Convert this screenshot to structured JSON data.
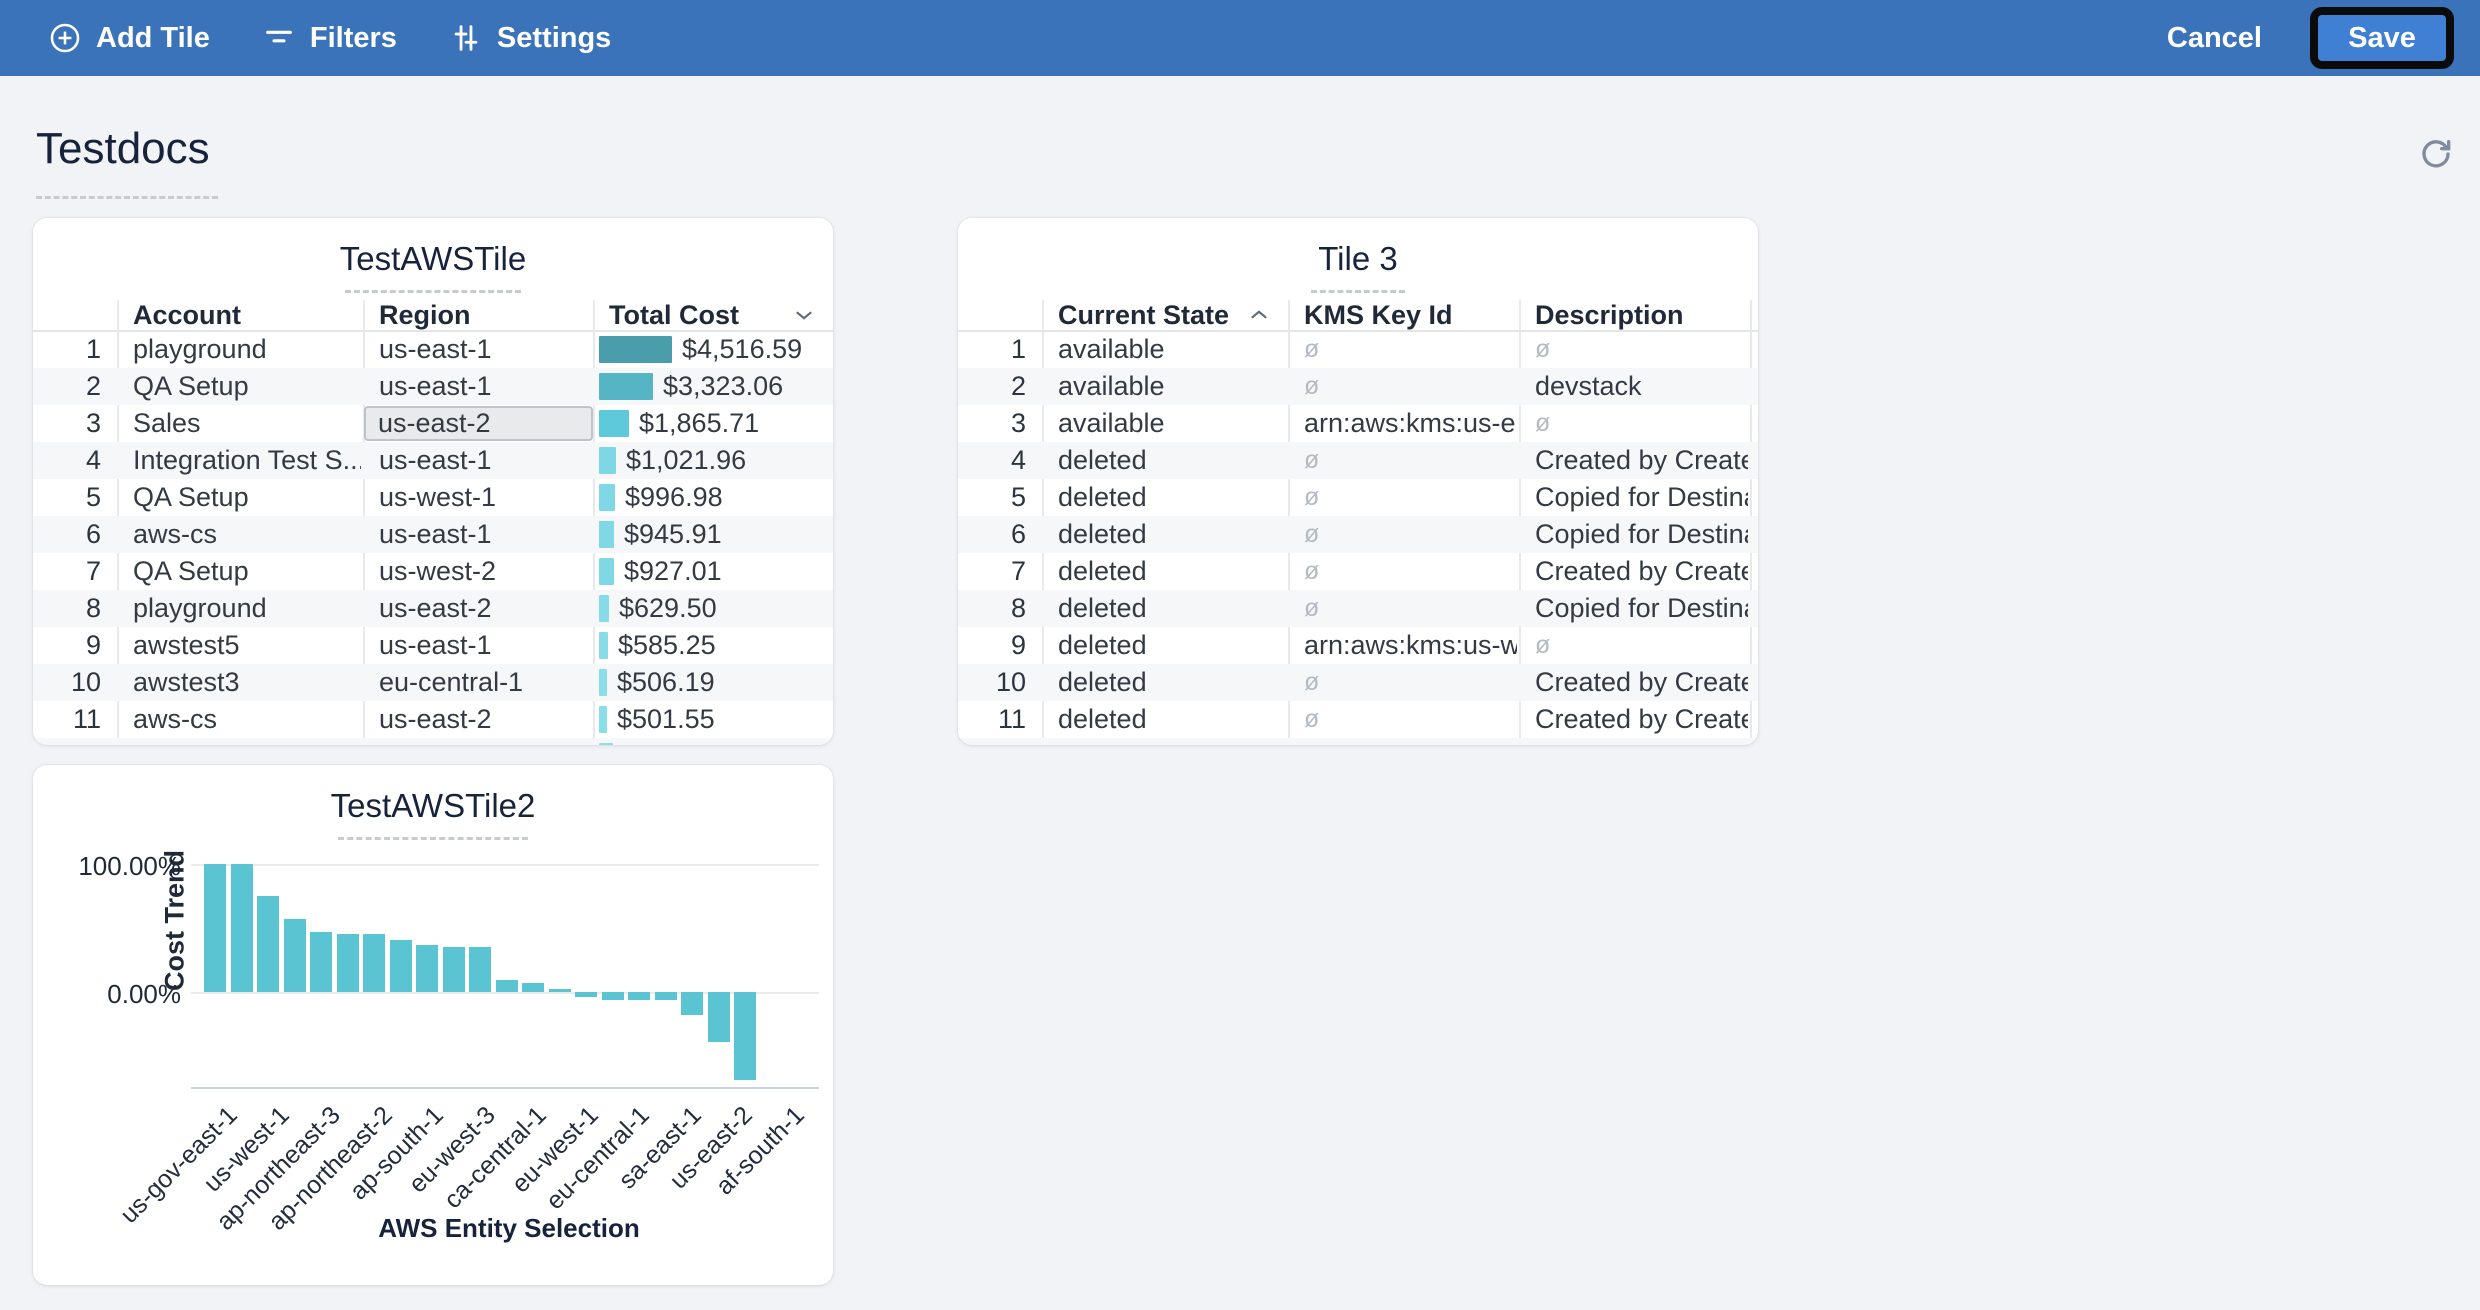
{
  "toolbar": {
    "add_tile_label": "Add Tile",
    "filters_label": "Filters",
    "settings_label": "Settings",
    "cancel_label": "Cancel",
    "save_label": "Save",
    "bar_color": "#3b73ba",
    "save_fill_color": "#3f80d4",
    "save_outline_color": "#0b0b0c"
  },
  "page": {
    "title": "Testdocs"
  },
  "icons": {
    "refresh": "refresh-icon",
    "add": "plus-circle-icon",
    "filters": "funnel-icon",
    "settings": "sliders-icon"
  },
  "tiles": {
    "aws_table": {
      "title": "TestAWSTile",
      "columns": [
        "Account",
        "Region",
        "Total Cost"
      ],
      "sort": {
        "column": "Total Cost",
        "direction": "desc"
      },
      "max_cost": 4516.59,
      "selected_cell": {
        "row": 3,
        "column": "Region"
      },
      "rows": [
        {
          "n": "1",
          "account": "playground",
          "region": "us-east-1",
          "cost_text": "$4,516.59",
          "cost_value": 4516.59,
          "bar_color": "#4a9daa"
        },
        {
          "n": "2",
          "account": "QA Setup",
          "region": "us-east-1",
          "cost_text": "$3,323.06",
          "cost_value": 3323.06,
          "bar_color": "#55b5c4"
        },
        {
          "n": "3",
          "account": "Sales",
          "region": "us-east-2",
          "cost_text": "$1,865.71",
          "cost_value": 1865.71,
          "bar_color": "#5ec9da"
        },
        {
          "n": "4",
          "account": "Integration Test S...",
          "region": "us-east-1",
          "cost_text": "$1,021.96",
          "cost_value": 1021.96,
          "bar_color": "#7dd7e5"
        },
        {
          "n": "5",
          "account": "QA Setup",
          "region": "us-west-1",
          "cost_text": "$996.98",
          "cost_value": 996.98,
          "bar_color": "#7fd8e6"
        },
        {
          "n": "6",
          "account": "aws-cs",
          "region": "us-east-1",
          "cost_text": "$945.91",
          "cost_value": 945.91,
          "bar_color": "#80d8e6"
        },
        {
          "n": "7",
          "account": "QA Setup",
          "region": "us-west-2",
          "cost_text": "$927.01",
          "cost_value": 927.01,
          "bar_color": "#80d8e6"
        },
        {
          "n": "8",
          "account": "playground",
          "region": "us-east-2",
          "cost_text": "$629.50",
          "cost_value": 629.5,
          "bar_color": "#87dbe8"
        },
        {
          "n": "9",
          "account": "awstest5",
          "region": "us-east-1",
          "cost_text": "$585.25",
          "cost_value": 585.25,
          "bar_color": "#88dce8"
        },
        {
          "n": "10",
          "account": "awstest3",
          "region": "eu-central-1",
          "cost_text": "$506.19",
          "cost_value": 506.19,
          "bar_color": "#8bdde9"
        },
        {
          "n": "11",
          "account": "aws-cs",
          "region": "us-east-2",
          "cost_text": "$501.55",
          "cost_value": 501.55,
          "bar_color": "#8bdde9"
        }
      ],
      "partial_row_bar_color": "#8ddee9"
    },
    "tile3": {
      "title": "Tile 3",
      "columns": [
        "Current State",
        "KMS Key Id",
        "Description"
      ],
      "sort": {
        "column": "Current State",
        "direction": "asc"
      },
      "null_symbol": "ø",
      "rows": [
        {
          "n": "1",
          "state": "available",
          "kms": "",
          "desc": ""
        },
        {
          "n": "2",
          "state": "available",
          "kms": "",
          "desc": "devstack"
        },
        {
          "n": "3",
          "state": "available",
          "kms": "arn:aws:kms:us-e...",
          "desc": ""
        },
        {
          "n": "4",
          "state": "deleted",
          "kms": "",
          "desc": "Created by Create..."
        },
        {
          "n": "5",
          "state": "deleted",
          "kms": "",
          "desc": "Copied for Destina..."
        },
        {
          "n": "6",
          "state": "deleted",
          "kms": "",
          "desc": "Copied for Destina..."
        },
        {
          "n": "7",
          "state": "deleted",
          "kms": "",
          "desc": "Created by Create..."
        },
        {
          "n": "8",
          "state": "deleted",
          "kms": "",
          "desc": "Copied for Destina..."
        },
        {
          "n": "9",
          "state": "deleted",
          "kms": "arn:aws:kms:us-w...",
          "desc": ""
        },
        {
          "n": "10",
          "state": "deleted",
          "kms": "",
          "desc": "Created by Create..."
        },
        {
          "n": "11",
          "state": "deleted",
          "kms": "",
          "desc": "Created by Create..."
        }
      ]
    }
  },
  "chart_data": {
    "type": "bar",
    "title": "TestAWSTile2",
    "ylabel": "Cost Trend",
    "xlabel": "AWS Entity Selection",
    "ytick_labels": [
      "100.00%",
      "0.00%"
    ],
    "ylim": [
      -76,
      108
    ],
    "grid": true,
    "bar_color": "#5bc4d3",
    "values": [
      100,
      100,
      75,
      57,
      47,
      45,
      45,
      41,
      37,
      35,
      35,
      9.5,
      7,
      2.3,
      -4,
      -6,
      -6,
      -6,
      -18,
      -39,
      -69
    ],
    "visible_x_labels": [
      "us-gov-east-1",
      "us-west-1",
      "ap-northeast-3",
      "ap-northeast-2",
      "ap-south-1",
      "eu-west-3",
      "ca-central-1",
      "eu-west-1",
      "eu-central-1",
      "sa-east-1",
      "us-east-2",
      "af-south-1"
    ]
  }
}
